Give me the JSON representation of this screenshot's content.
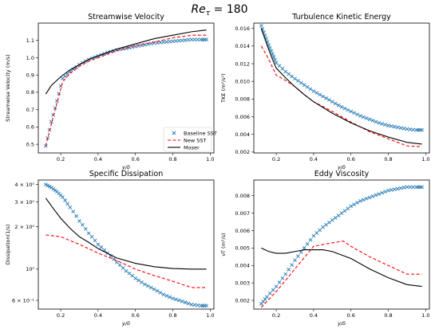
{
  "figure": {
    "suptitle": "Re",
    "suptitle_sub": "τ",
    "suptitle_rest": " = 180"
  },
  "legend": {
    "placement": "lower-right of panel 1",
    "entries": [
      "Baseline SST",
      "New SST",
      "Moser"
    ]
  },
  "colors": {
    "baseline": "#1f77b4",
    "new": "#ff0000",
    "moser": "#000000"
  },
  "chart_data": [
    {
      "type": "line",
      "title": "Streamwise Velocity",
      "xlabel": "y/δ",
      "ylabel": "Streamwise Velocity (m/s)",
      "xlim": [
        0.08,
        1.02
      ],
      "ylim": [
        0.45,
        1.2
      ],
      "xticks": [
        0.2,
        0.4,
        0.6,
        0.8,
        1.0
      ],
      "xtick_labels": [
        "0.2",
        "0.4",
        "0.6",
        "0.8",
        "1.0"
      ],
      "yticks": [
        0.5,
        0.6,
        0.7,
        0.8,
        0.9,
        1.0,
        1.1
      ],
      "ytick_labels": [
        "0.5",
        "0.6",
        "0.7",
        "0.8",
        "0.9",
        "1.0",
        "1.1"
      ],
      "yscale": "linear",
      "series": [
        {
          "name": "Baseline SST",
          "style": "x-markers",
          "x": [
            0.12,
            0.15,
            0.18,
            0.21,
            0.25,
            0.3,
            0.35,
            0.4,
            0.45,
            0.5,
            0.55,
            0.6,
            0.65,
            0.7,
            0.75,
            0.8,
            0.85,
            0.9,
            0.95,
            0.98
          ],
          "y": [
            0.49,
            0.63,
            0.75,
            0.88,
            0.92,
            0.96,
            0.99,
            1.01,
            1.03,
            1.045,
            1.055,
            1.065,
            1.075,
            1.085,
            1.09,
            1.095,
            1.1,
            1.105,
            1.105,
            1.105
          ]
        },
        {
          "name": "New SST",
          "style": "dashed",
          "x": [
            0.12,
            0.15,
            0.18,
            0.21,
            0.25,
            0.3,
            0.35,
            0.4,
            0.5,
            0.6,
            0.7,
            0.8,
            0.9,
            0.98
          ],
          "y": [
            0.49,
            0.62,
            0.74,
            0.86,
            0.91,
            0.95,
            0.98,
            1.0,
            1.04,
            1.07,
            1.09,
            1.115,
            1.13,
            1.13
          ]
        },
        {
          "name": "Moser",
          "style": "solid",
          "x": [
            0.12,
            0.15,
            0.2,
            0.25,
            0.3,
            0.35,
            0.4,
            0.5,
            0.6,
            0.7,
            0.8,
            0.9,
            0.98
          ],
          "y": [
            0.79,
            0.84,
            0.89,
            0.93,
            0.96,
            0.99,
            1.01,
            1.05,
            1.08,
            1.11,
            1.13,
            1.15,
            1.16
          ]
        }
      ]
    },
    {
      "type": "line",
      "title": "Turbulence Kinetic Energy",
      "xlabel": "y/δ",
      "ylabel": "TKE (m²/s²)",
      "xlim": [
        0.08,
        1.02
      ],
      "ylim": [
        0.0019,
        0.0166
      ],
      "xticks": [
        0.2,
        0.4,
        0.6,
        0.8,
        1.0
      ],
      "xtick_labels": [
        "0.2",
        "0.4",
        "0.6",
        "0.8",
        "1.0"
      ],
      "yticks": [
        0.002,
        0.004,
        0.006,
        0.008,
        0.01,
        0.012,
        0.014,
        0.016
      ],
      "ytick_labels": [
        "0.002",
        "0.004",
        "0.006",
        "0.008",
        "0.010",
        "0.012",
        "0.014",
        "0.016"
      ],
      "yscale": "linear",
      "series": [
        {
          "name": "Baseline SST",
          "style": "x-markers",
          "x": [
            0.12,
            0.14,
            0.16,
            0.18,
            0.2,
            0.25,
            0.3,
            0.35,
            0.4,
            0.45,
            0.5,
            0.55,
            0.6,
            0.65,
            0.7,
            0.75,
            0.8,
            0.85,
            0.9,
            0.95,
            0.98
          ],
          "y": [
            0.0163,
            0.0152,
            0.0141,
            0.0131,
            0.0121,
            0.0111,
            0.0103,
            0.0096,
            0.0089,
            0.0083,
            0.0077,
            0.0071,
            0.0066,
            0.0061,
            0.0057,
            0.0053,
            0.005,
            0.0048,
            0.0046,
            0.0045,
            0.0045
          ]
        },
        {
          "name": "New SST",
          "style": "dashed",
          "x": [
            0.12,
            0.16,
            0.2,
            0.25,
            0.3,
            0.35,
            0.4,
            0.5,
            0.6,
            0.7,
            0.8,
            0.9,
            0.98
          ],
          "y": [
            0.014,
            0.0125,
            0.0107,
            0.0101,
            0.0094,
            0.0085,
            0.0077,
            0.0066,
            0.0054,
            0.0043,
            0.0035,
            0.0027,
            0.0026
          ]
        },
        {
          "name": "Moser",
          "style": "solid",
          "x": [
            0.12,
            0.14,
            0.16,
            0.18,
            0.2,
            0.25,
            0.3,
            0.35,
            0.4,
            0.5,
            0.6,
            0.7,
            0.8,
            0.9,
            0.98
          ],
          "y": [
            0.016,
            0.0148,
            0.0136,
            0.0125,
            0.0115,
            0.0104,
            0.0094,
            0.0085,
            0.0077,
            0.0064,
            0.0053,
            0.0044,
            0.0037,
            0.0031,
            0.0029
          ]
        }
      ]
    },
    {
      "type": "line",
      "title": "Specific Dissipation",
      "xlabel": "y/δ",
      "ylabel": "Dissipation(1/s)",
      "xlim": [
        0.08,
        1.02
      ],
      "ylim": [
        0.52,
        4.3
      ],
      "yscale": "log",
      "xticks": [
        0.2,
        0.4,
        0.6,
        0.8,
        1.0
      ],
      "xtick_labels": [
        "0.2",
        "0.4",
        "0.6",
        "0.8",
        "1.0"
      ],
      "yticks": [
        4,
        3,
        2,
        1,
        0.6
      ],
      "ytick_labels": [
        "4 × 10⁰",
        "3 × 10⁰",
        "2 × 10⁰",
        "10⁰",
        "6 × 10⁻¹"
      ],
      "series": [
        {
          "name": "Baseline SST",
          "style": "x-markers",
          "x": [
            0.12,
            0.15,
            0.18,
            0.21,
            0.25,
            0.3,
            0.35,
            0.4,
            0.45,
            0.5,
            0.55,
            0.6,
            0.65,
            0.7,
            0.75,
            0.8,
            0.85,
            0.9,
            0.95,
            0.98
          ],
          "y": [
            4.0,
            3.8,
            3.55,
            3.25,
            2.75,
            2.2,
            1.8,
            1.5,
            1.3,
            1.12,
            0.97,
            0.86,
            0.78,
            0.72,
            0.66,
            0.62,
            0.59,
            0.56,
            0.55,
            0.55
          ]
        },
        {
          "name": "New SST",
          "style": "dashed",
          "x": [
            0.12,
            0.2,
            0.3,
            0.4,
            0.5,
            0.6,
            0.7,
            0.8,
            0.9,
            0.98
          ],
          "y": [
            1.75,
            1.7,
            1.5,
            1.3,
            1.15,
            1.0,
            0.9,
            0.82,
            0.74,
            0.74
          ]
        },
        {
          "name": "Moser",
          "style": "solid",
          "x": [
            0.12,
            0.16,
            0.2,
            0.25,
            0.3,
            0.35,
            0.4,
            0.5,
            0.6,
            0.7,
            0.8,
            0.9,
            0.98
          ],
          "y": [
            3.2,
            2.7,
            2.3,
            1.95,
            1.7,
            1.55,
            1.4,
            1.2,
            1.1,
            1.04,
            1.01,
            1.0,
            1.0
          ]
        }
      ]
    },
    {
      "type": "line",
      "title": "Eddy Viscosity",
      "xlabel": "y/δ",
      "ylabel": "νT (m²/s)",
      "xlim": [
        0.08,
        1.02
      ],
      "ylim": [
        0.0015,
        0.0089
      ],
      "xticks": [
        0.2,
        0.4,
        0.6,
        0.8,
        1.0
      ],
      "xtick_labels": [
        "0.2",
        "0.4",
        "0.6",
        "0.8",
        "1.0"
      ],
      "yticks": [
        0.002,
        0.003,
        0.004,
        0.005,
        0.006,
        0.007,
        0.008
      ],
      "ytick_labels": [
        "0.002",
        "0.003",
        "0.004",
        "0.005",
        "0.006",
        "0.007",
        "0.008"
      ],
      "yscale": "linear",
      "series": [
        {
          "name": "Baseline SST",
          "style": "x-markers",
          "x": [
            0.12,
            0.15,
            0.2,
            0.25,
            0.3,
            0.35,
            0.4,
            0.45,
            0.5,
            0.55,
            0.6,
            0.65,
            0.7,
            0.75,
            0.8,
            0.85,
            0.9,
            0.95,
            0.98
          ],
          "y": [
            0.0018,
            0.0022,
            0.0028,
            0.0035,
            0.0043,
            0.005,
            0.0057,
            0.0062,
            0.0066,
            0.007,
            0.0074,
            0.0077,
            0.0079,
            0.0081,
            0.0083,
            0.0084,
            0.0085,
            0.0085,
            0.0085
          ]
        },
        {
          "name": "New SST",
          "style": "dashed",
          "x": [
            0.12,
            0.2,
            0.3,
            0.4,
            0.5,
            0.56,
            0.6,
            0.7,
            0.8,
            0.9,
            0.98
          ],
          "y": [
            0.0016,
            0.0025,
            0.0038,
            0.0051,
            0.0053,
            0.0054,
            0.0051,
            0.0045,
            0.004,
            0.0035,
            0.0035
          ]
        },
        {
          "name": "Moser",
          "style": "solid",
          "x": [
            0.12,
            0.16,
            0.2,
            0.25,
            0.3,
            0.35,
            0.4,
            0.45,
            0.5,
            0.6,
            0.7,
            0.8,
            0.9,
            0.98
          ],
          "y": [
            0.005,
            0.0048,
            0.0047,
            0.0047,
            0.0048,
            0.0049,
            0.0049,
            0.0049,
            0.0048,
            0.0044,
            0.0038,
            0.0033,
            0.0029,
            0.0028
          ]
        }
      ]
    }
  ]
}
